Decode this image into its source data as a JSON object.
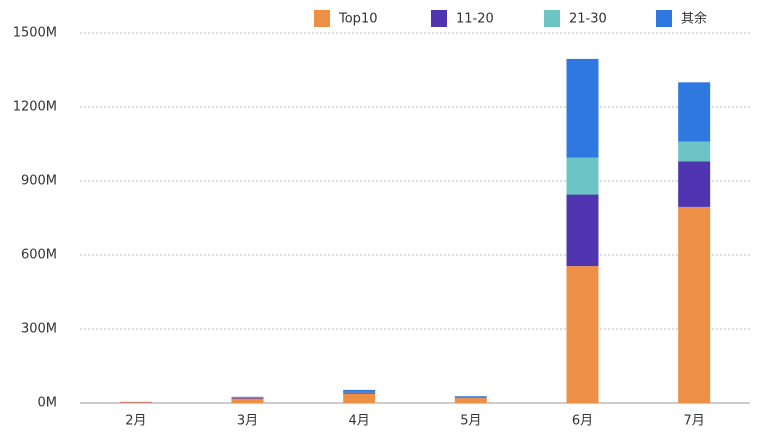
{
  "chart_data": {
    "type": "stacked_bar",
    "categories": [
      "2月",
      "3月",
      "4月",
      "5月",
      "6月",
      "7月"
    ],
    "series": [
      {
        "name": "Top10",
        "color": "#ED8F45",
        "values": [
          3,
          18,
          38,
          20,
          555,
          795
        ]
      },
      {
        "name": "11-20",
        "color": "#4F35B0",
        "values": [
          1,
          3,
          5,
          3,
          290,
          185
        ]
      },
      {
        "name": "21-30",
        "color": "#6CC4C4",
        "values": [
          0.5,
          1,
          2,
          2,
          150,
          80
        ]
      },
      {
        "name": "其余",
        "color": "#2F78E0",
        "values": [
          0.5,
          3,
          8,
          3,
          400,
          240
        ]
      }
    ],
    "ylim": [
      0,
      1500
    ],
    "yticks": [
      {
        "value": 0,
        "label": "0M"
      },
      {
        "value": 300,
        "label": "300M"
      },
      {
        "value": 600,
        "label": "600M"
      },
      {
        "value": 900,
        "label": "900M"
      },
      {
        "value": 1200,
        "label": "1200M"
      },
      {
        "value": 1500,
        "label": "1500M"
      }
    ],
    "grid": true,
    "legend": "top"
  }
}
